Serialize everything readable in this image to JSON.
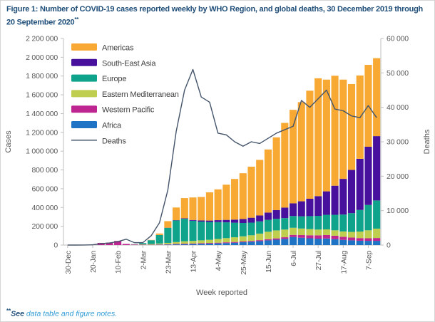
{
  "figure": {
    "title": "Figure 1: Number of COVID-19 cases reported weekly by WHO Region, and global deaths, 30 December 2019 through 20 September 2020",
    "title_sup": "**"
  },
  "footnote": {
    "marker": "**",
    "see": "See ",
    "link": "data table and figure notes."
  },
  "palette": {
    "title_blue": "#1F4E79",
    "link_blue": "#2E9BD5",
    "axis_gray": "#595959",
    "axis_line_gray": "#BFBFBF"
  },
  "chart_data": {
    "type": "bar",
    "subtype": "stacked-bars-with-line-overlay",
    "x_axis_label": "Week reported",
    "x": [
      "30-Dec",
      "6-Jan",
      "13-Jan",
      "20-Jan",
      "27-Jan",
      "3-Feb",
      "10-Feb",
      "17-Feb",
      "24-Feb",
      "2-Mar",
      "9-Mar",
      "16-Mar",
      "23-Mar",
      "30-Mar",
      "6-Apr",
      "13-Apr",
      "20-Apr",
      "27-Apr",
      "4-May",
      "11-May",
      "18-May",
      "25-May",
      "1-Jun",
      "8-Jun",
      "15-Jun",
      "22-Jun",
      "29-Jun",
      "6-Jul",
      "13-Jul",
      "20-Jul",
      "27-Jul",
      "3-Aug",
      "10-Aug",
      "17-Aug",
      "24-Aug",
      "31-Aug",
      "7-Sep",
      "14-Sep"
    ],
    "x_tick_every": 3,
    "left_axis": {
      "label": "Cases",
      "min": 0,
      "max": 2200000,
      "step": 200000
    },
    "right_axis": {
      "label": "Deaths",
      "min": 0,
      "max": 60000,
      "step": 10000
    },
    "series": [
      {
        "key": "africa",
        "name": "Africa",
        "color": "#1E73C4",
        "values": [
          0,
          0,
          0,
          0,
          0,
          0,
          0,
          0,
          300,
          600,
          1500,
          3000,
          5000,
          7000,
          9000,
          11000,
          13000,
          15000,
          18000,
          21000,
          25000,
          30000,
          35000,
          42000,
          50000,
          57000,
          66000,
          86000,
          78000,
          72000,
          68000,
          70000,
          63000,
          55000,
          50000,
          46000,
          45000,
          45000
        ]
      },
      {
        "key": "western_pacific",
        "name": "Western Pacific",
        "color": "#BE2590",
        "values": [
          0,
          100,
          100,
          2600,
          23000,
          25000,
          44000,
          12000,
          6000,
          4000,
          3000,
          3500,
          4000,
          5000,
          6000,
          6000,
          7000,
          7000,
          7000,
          8000,
          8000,
          8000,
          9000,
          10000,
          12000,
          14000,
          17000,
          22000,
          28000,
          32000,
          35000,
          37000,
          36000,
          33000,
          30000,
          28000,
          27000,
          30000
        ]
      },
      {
        "key": "eastern_mediterranean",
        "name": "Eastern Mediterranean",
        "color": "#BFCE4F",
        "values": [
          0,
          0,
          0,
          0,
          0,
          0,
          100,
          100,
          1000,
          4000,
          7000,
          10000,
          14000,
          20000,
          25000,
          27000,
          30000,
          34000,
          40000,
          45000,
          50000,
          55000,
          60000,
          70000,
          80000,
          85000,
          82000,
          76000,
          70000,
          66000,
          62000,
          60000,
          58000,
          57000,
          60000,
          70000,
          85000,
          100000
        ]
      },
      {
        "key": "europe",
        "name": "Europe",
        "color": "#0FA38C",
        "values": [
          0,
          0,
          0,
          0,
          100,
          100,
          100,
          100,
          2000,
          12000,
          40000,
          90000,
          160000,
          230000,
          240000,
          215000,
          200000,
          190000,
          180000,
          168000,
          155000,
          142000,
          135000,
          130000,
          126000,
          124000,
          122000,
          125000,
          130000,
          138000,
          146000,
          155000,
          165000,
          180000,
          200000,
          230000,
          270000,
          300000
        ]
      },
      {
        "key": "south_east_asia",
        "name": "South-East Asia",
        "color": "#47119E",
        "values": [
          0,
          0,
          0,
          0,
          0,
          0,
          0,
          0,
          100,
          100,
          300,
          700,
          1500,
          3000,
          5000,
          8000,
          12000,
          15000,
          20000,
          26000,
          33000,
          42000,
          52000,
          63000,
          78000,
          92000,
          112000,
          135000,
          160000,
          185000,
          210000,
          250000,
          310000,
          380000,
          460000,
          545000,
          620000,
          685000
        ]
      },
      {
        "key": "americas",
        "name": "Americas",
        "color": "#F7A933",
        "values": [
          0,
          0,
          0,
          0,
          100,
          0,
          0,
          100,
          100,
          500,
          3000,
          16000,
          70000,
          135000,
          215000,
          240000,
          250000,
          301000,
          328000,
          375000,
          433000,
          488000,
          544000,
          592000,
          672000,
          775000,
          902000,
          996000,
          1056000,
          1151000,
          1255000,
          1190000,
          1171000,
          1057000,
          915000,
          887000,
          872000,
          830000
        ]
      }
    ],
    "line_series": {
      "key": "deaths",
      "name": "Deaths",
      "axis": "right",
      "color": "#44546A",
      "values": [
        0,
        0,
        10,
        80,
        400,
        600,
        1000,
        1700,
        700,
        700,
        2700,
        6500,
        16000,
        33000,
        45000,
        51000,
        43000,
        41500,
        32500,
        32000,
        30000,
        28700,
        30000,
        29500,
        31000,
        32500,
        33500,
        34500,
        42000,
        40000,
        42500,
        45000,
        39500,
        39000,
        37500,
        37000,
        40500,
        37000
      ]
    },
    "legend": [
      {
        "label": "Americas",
        "type": "swatch",
        "color": "#F7A933"
      },
      {
        "label": "South-East Asia",
        "type": "swatch",
        "color": "#47119E"
      },
      {
        "label": "Europe",
        "type": "swatch",
        "color": "#0FA38C"
      },
      {
        "label": "Eastern Mediterranean",
        "type": "swatch",
        "color": "#BFCE4F"
      },
      {
        "label": "Western Pacific",
        "type": "swatch",
        "color": "#BE2590"
      },
      {
        "label": "Africa",
        "type": "swatch",
        "color": "#1E73C4"
      },
      {
        "label": "Deaths",
        "type": "line",
        "color": "#44546A"
      }
    ],
    "legend_position": "top-left-inside"
  }
}
